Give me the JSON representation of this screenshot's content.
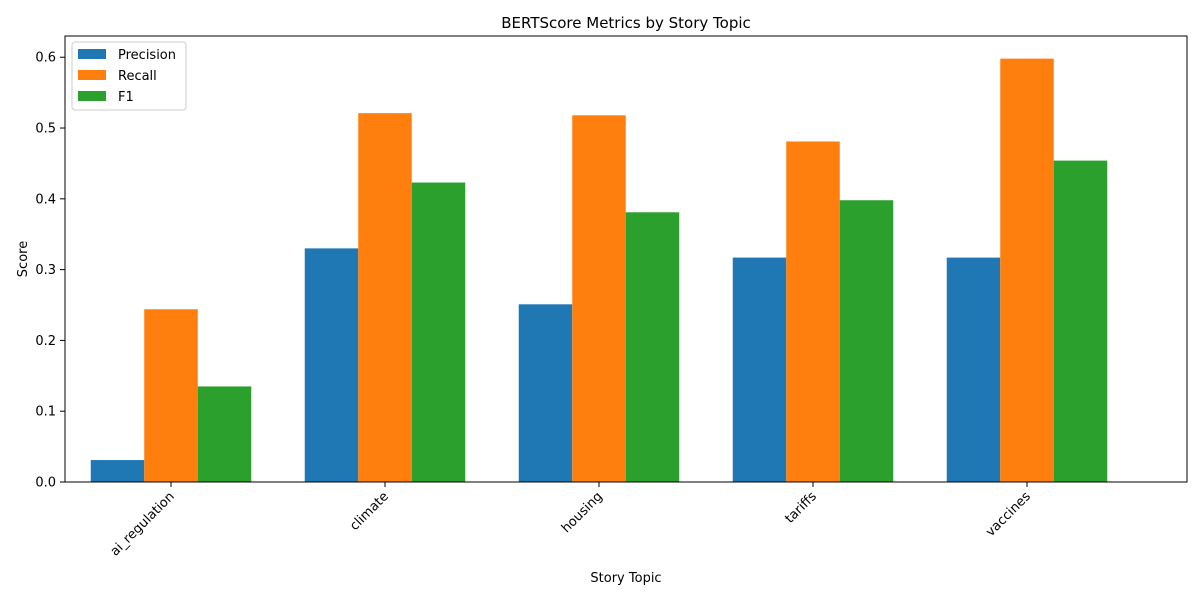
{
  "chart_data": {
    "type": "bar",
    "title": "BERTScore Metrics by Story Topic",
    "xlabel": "Story Topic",
    "ylabel": "Score",
    "ylim": [
      0,
      0.63
    ],
    "yticks": [
      0.0,
      0.1,
      0.2,
      0.3,
      0.4,
      0.5,
      0.6
    ],
    "categories": [
      "ai_regulation",
      "climate",
      "housing",
      "tariffs",
      "vaccines"
    ],
    "series": [
      {
        "name": "Precision",
        "color": "#1f77b4",
        "values": [
          0.031,
          0.33,
          0.251,
          0.317,
          0.317
        ]
      },
      {
        "name": "Recall",
        "color": "#ff7f0e",
        "values": [
          0.244,
          0.521,
          0.518,
          0.481,
          0.598
        ]
      },
      {
        "name": "F1",
        "color": "#2ca02c",
        "values": [
          0.135,
          0.423,
          0.381,
          0.398,
          0.454
        ]
      }
    ],
    "legend": "top-left",
    "grid": false
  }
}
